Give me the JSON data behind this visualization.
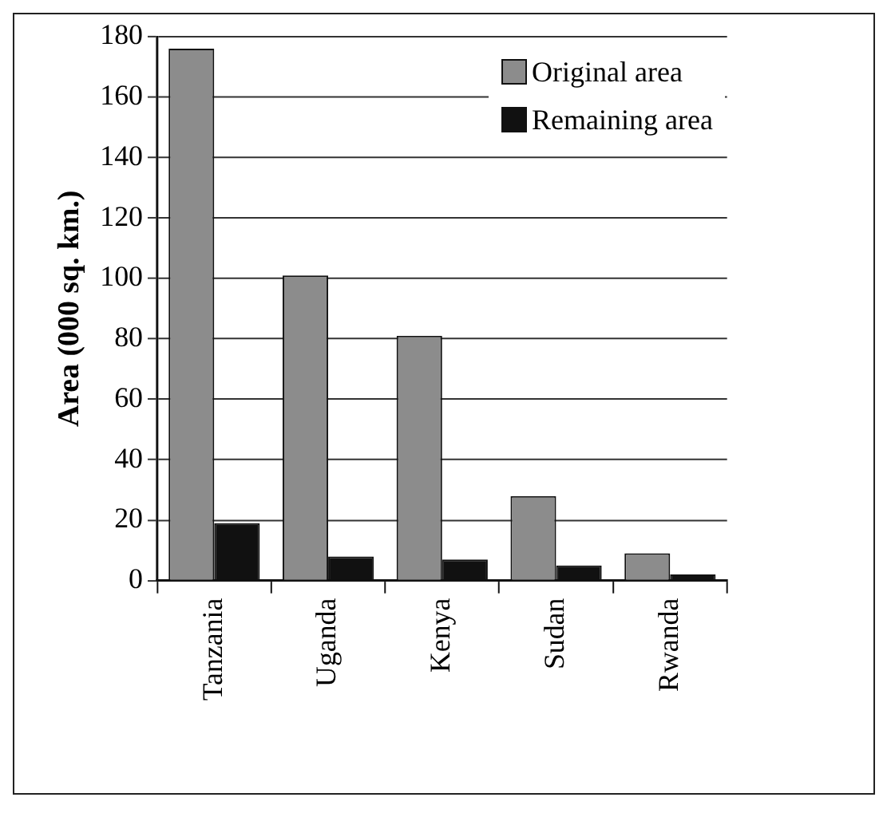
{
  "chart_data": {
    "type": "bar",
    "ylabel": "Area (000 sq. km.)",
    "categories": [
      "Tanzania",
      "Uganda",
      "Kenya",
      "Sudan",
      "Rwanda"
    ],
    "series": [
      {
        "name": "Original area",
        "color": "#8c8c8c",
        "values": [
          176,
          101,
          81,
          28,
          9
        ]
      },
      {
        "name": "Remaining area",
        "color": "#111111",
        "values": [
          19,
          8,
          7,
          5,
          2
        ]
      }
    ],
    "ylim": [
      0,
      180
    ],
    "yticks": [
      0,
      20,
      40,
      60,
      80,
      100,
      120,
      140,
      160,
      180
    ],
    "grid": "y",
    "legend": "top right"
  }
}
